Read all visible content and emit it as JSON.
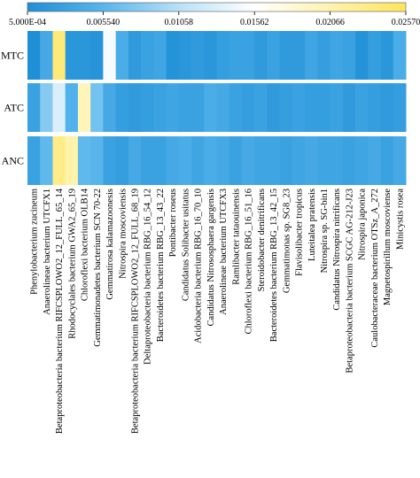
{
  "chart_data": {
    "type": "heatmap",
    "colorbar": {
      "min": 0.0005,
      "max": 0.0257,
      "tick_values": [
        0.0005,
        0.00554,
        0.01058,
        0.01562,
        0.02066,
        0.0257
      ],
      "tick_labels": [
        "5.000E-04",
        "0.005540",
        "0.01058",
        "0.01562",
        "0.02066",
        "0.02570"
      ],
      "colors": [
        "#1f8fd6",
        "#57b5ec",
        "#b8e1f7",
        "#ffffff",
        "#fff3b0",
        "#ffe45a"
      ]
    },
    "rows": [
      "MTC",
      "ATC",
      "ANC"
    ],
    "columns": [
      "Phenylobacterium zucineum",
      "Anaerolineae bacterium UTCFX1",
      "Betaproteobacteria bacterium RIFCSPLOWO2_12_FULL_65_14",
      "Rhodocyclales bacterium GWA2_65_19",
      "Chloroflexi bacterium OLB14",
      "Gemmatimonadetes bacterium SCN 70-22",
      "Gemmatirosa kalamazoonesis",
      "Nitrospira moscoviensis",
      "Betaproteobacteria bacterium RIFCSPLOWO2_12_FULL_68_19",
      "Deltaproteobacteria bacterium RBG_16_54_12",
      "Bacteroidetes bacterium RBG_13_43_22",
      "Pontibacter roseus",
      "Candidatus Solibacter usitatus",
      "Acidobacteria bacterium RBG_16_70_10",
      "Candidatus Nitrososphaera gargensis",
      "Anaerolineae bacterium UTCFX3",
      "Ramlibacter tataouinensis",
      "Chloroflexi bacterium RBG_16_51_16",
      "Steroidobacter denitrificans",
      "Bacteroidetes bacterium RBG_13_42_15",
      "Gemmatimonas sp. SG8_23",
      "Flavisolibacter tropicus",
      "Luteitalea pratensis",
      "Nitrospira sp. SG-bin1",
      "Candidatus Nitrospira nitrificans",
      "Betaproteobacteria bacterium SCGC AG-212-J23",
      "Nitrospira japonica",
      "Caulobacteraceae bacterium OTSz_A_272",
      "Magnetospirillum moscoviense",
      "Minicystis rosea"
    ],
    "values": [
      [
        0.0005,
        0.004,
        0.024,
        0.0015,
        0.0015,
        0.0012,
        0.015,
        0.0045,
        0.002,
        0.003,
        0.0035,
        0.001,
        0.0015,
        0.002,
        0.0015,
        0.0025,
        0.003,
        0.003,
        0.002,
        0.003,
        0.002,
        0.002,
        0.0035,
        0.0025,
        0.0035,
        0.003,
        0.001,
        0.0025,
        0.0015,
        0.0045
      ],
      [
        0.003,
        0.008,
        0.013,
        0.005,
        0.02,
        0.007,
        0.004,
        0.0025,
        0.002,
        0.0025,
        0.003,
        0.0035,
        0.003,
        0.003,
        0.0045,
        0.004,
        0.003,
        0.0025,
        0.003,
        0.002,
        0.0025,
        0.003,
        0.0025,
        0.0025,
        0.003,
        0.002,
        0.003,
        0.0025,
        0.002,
        0.0025
      ],
      [
        0.003,
        0.006,
        0.023,
        0.021,
        0.006,
        0.0055,
        0.003,
        0.0025,
        0.004,
        0.003,
        0.003,
        0.004,
        0.0045,
        0.0035,
        0.0045,
        0.004,
        0.003,
        0.004,
        0.0035,
        0.0035,
        0.003,
        0.0035,
        0.004,
        0.0035,
        0.0035,
        0.003,
        0.0035,
        0.004,
        0.003,
        0.004
      ]
    ]
  }
}
